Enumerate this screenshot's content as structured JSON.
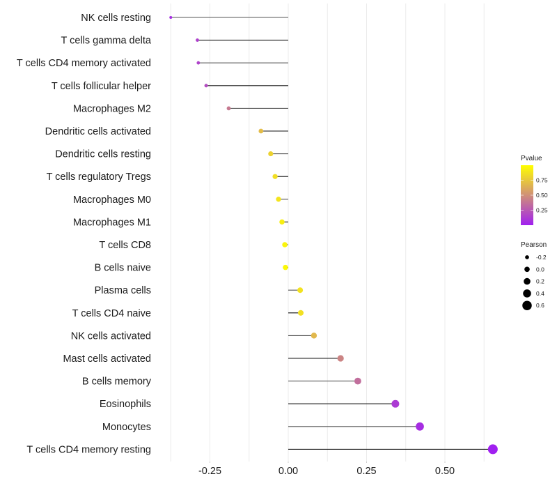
{
  "chart_data": {
    "type": "lollipop",
    "title": "",
    "xlabel": "",
    "ylabel": "",
    "xlim": [
      -0.4,
      0.68
    ],
    "x_ticks": [
      -0.25,
      0.0,
      0.25,
      0.5
    ],
    "x_tick_labels": [
      "-0.25",
      "0.00",
      "0.25",
      "0.50"
    ],
    "grid": true,
    "categories": [
      "NK cells resting",
      "T cells gamma delta",
      "T cells CD4 memory activated",
      "T cells follicular helper",
      "Macrophages M2",
      "Dendritic cells activated",
      "Dendritic cells resting",
      "T cells regulatory  Tregs ",
      "Macrophages M0",
      "Macrophages M1",
      "T cells CD8",
      "B cells naive",
      "Plasma cells",
      "T cells CD4 naive",
      "NK cells activated",
      "Mast cells activated",
      "B cells memory",
      "Eosinophils",
      "Monocytes",
      "T cells CD4 memory resting"
    ],
    "pearson": [
      -0.375,
      -0.29,
      -0.287,
      -0.262,
      -0.19,
      -0.087,
      -0.056,
      -0.042,
      -0.031,
      -0.02,
      -0.011,
      -0.009,
      0.038,
      0.04,
      0.082,
      0.167,
      0.222,
      0.342,
      0.42,
      0.653
    ],
    "pvalue": [
      0.06,
      0.15,
      0.16,
      0.2,
      0.4,
      0.7,
      0.8,
      0.85,
      0.88,
      0.93,
      0.95,
      0.97,
      0.87,
      0.86,
      0.68,
      0.45,
      0.35,
      0.12,
      0.06,
      0.002
    ],
    "color_legend": {
      "title": "Pvalue",
      "low_color": "#A020F0",
      "high_color": "#FFFF00",
      "range": [
        0,
        1
      ],
      "ticks": [
        0.25,
        0.5,
        0.75
      ],
      "tick_labels": [
        "0.25",
        "0.50",
        "0.75"
      ]
    },
    "size_legend": {
      "title": "Pearson",
      "values": [
        -0.2,
        0.0,
        0.2,
        0.4,
        0.6
      ],
      "labels": [
        "-0.2",
        "0.0",
        "0.2",
        "0.4",
        "0.6"
      ]
    }
  }
}
